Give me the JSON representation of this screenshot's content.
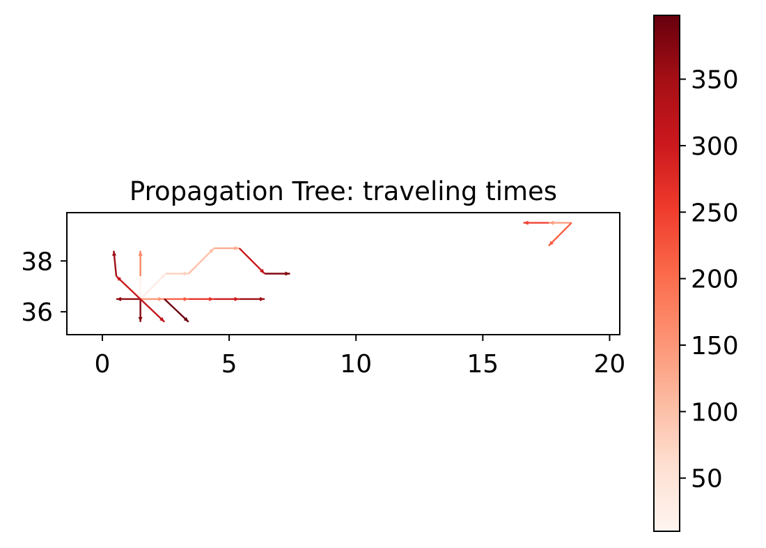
{
  "chart_data": {
    "type": "propagation-tree",
    "title": "Propagation Tree: traveling times",
    "xlabel": "",
    "ylabel": "",
    "xlim": [
      -1.4,
      20.4
    ],
    "ylim": [
      35.1,
      39.9
    ],
    "x_ticks": [
      0,
      5,
      10,
      15,
      20
    ],
    "y_ticks": [
      36,
      38
    ],
    "colormap": "Reds",
    "colorbar": {
      "range": [
        10,
        398
      ],
      "ticks": [
        50,
        100,
        150,
        200,
        250,
        300,
        350
      ],
      "colors": [
        "#fff5f0",
        "#fee0d2",
        "#fcbba1",
        "#fc9272",
        "#fb6a4a",
        "#ef3b2c",
        "#cb181d",
        "#a50f15",
        "#67000d"
      ]
    },
    "edges": [
      {
        "from": [
          1.5,
          36.5
        ],
        "to": [
          1.5,
          37.4
        ],
        "time": 15
      },
      {
        "from": [
          1.5,
          37.4
        ],
        "to": [
          1.5,
          38.4
        ],
        "time": 170
      },
      {
        "from": [
          1.5,
          36.5
        ],
        "to": [
          2.5,
          37.5
        ],
        "time": 30
      },
      {
        "from": [
          2.5,
          37.5
        ],
        "to": [
          3.4,
          37.5
        ],
        "time": 75
      },
      {
        "from": [
          3.4,
          37.5
        ],
        "to": [
          4.4,
          38.5
        ],
        "time": 100
      },
      {
        "from": [
          4.4,
          38.5
        ],
        "to": [
          5.4,
          38.5
        ],
        "time": 125
      },
      {
        "from": [
          5.4,
          38.5
        ],
        "to": [
          6.4,
          37.5
        ],
        "time": 305
      },
      {
        "from": [
          6.4,
          37.5
        ],
        "to": [
          7.4,
          37.5
        ],
        "time": 375
      },
      {
        "from": [
          1.5,
          36.5
        ],
        "to": [
          2.4,
          36.5
        ],
        "time": 150
      },
      {
        "from": [
          2.4,
          36.5
        ],
        "to": [
          3.4,
          36.5
        ],
        "time": 215
      },
      {
        "from": [
          3.4,
          36.5
        ],
        "to": [
          4.4,
          36.5
        ],
        "time": 265
      },
      {
        "from": [
          4.4,
          36.5
        ],
        "to": [
          5.4,
          36.5
        ],
        "time": 300
      },
      {
        "from": [
          5.4,
          36.5
        ],
        "to": [
          6.4,
          36.5
        ],
        "time": 355
      },
      {
        "from": [
          1.5,
          36.5
        ],
        "to": [
          0.55,
          36.5
        ],
        "time": 365
      },
      {
        "from": [
          1.5,
          36.5
        ],
        "to": [
          0.55,
          37.4
        ],
        "time": 300
      },
      {
        "from": [
          0.55,
          37.4
        ],
        "to": [
          0.45,
          38.4
        ],
        "time": 355
      },
      {
        "from": [
          1.5,
          36.5
        ],
        "to": [
          1.5,
          35.6
        ],
        "time": 375
      },
      {
        "from": [
          1.5,
          36.5
        ],
        "to": [
          2.45,
          35.6
        ],
        "time": 310
      },
      {
        "from": [
          2.45,
          36.5
        ],
        "to": [
          3.4,
          35.6
        ],
        "time": 395
      },
      {
        "from": [
          18.5,
          39.5
        ],
        "to": [
          17.6,
          39.5
        ],
        "time": 140
      },
      {
        "from": [
          17.6,
          39.5
        ],
        "to": [
          16.6,
          39.5
        ],
        "time": 245
      },
      {
        "from": [
          18.5,
          39.5
        ],
        "to": [
          17.6,
          38.6
        ],
        "time": 215
      }
    ]
  }
}
